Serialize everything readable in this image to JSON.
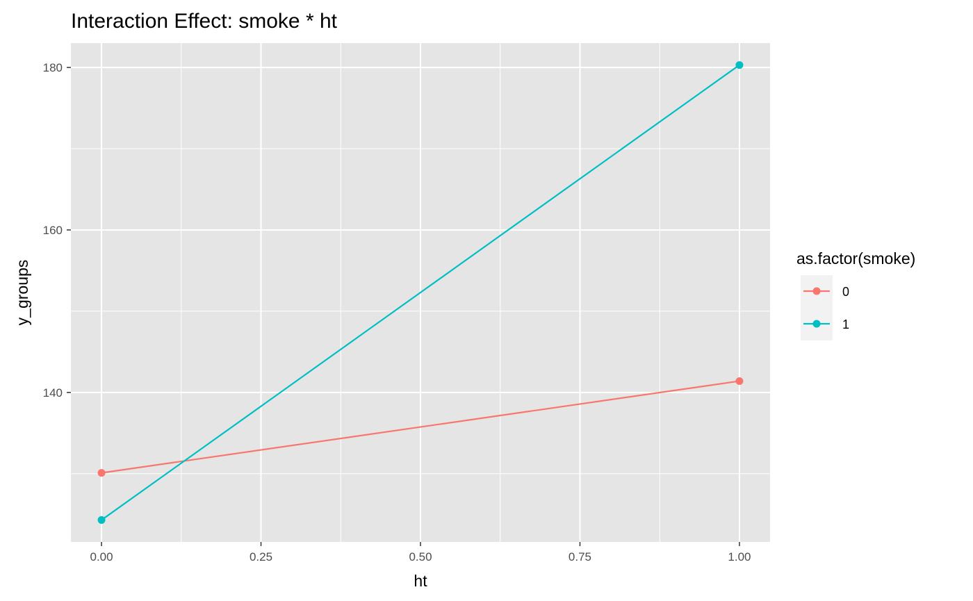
{
  "chart_data": {
    "type": "line",
    "title": "Interaction Effect: smoke * ht",
    "xlabel": "ht",
    "ylabel": "y_groups",
    "xlim": [
      -0.048,
      1.048
    ],
    "ylim": [
      121.6,
      183.0
    ],
    "x_ticks": [
      0.0,
      0.25,
      0.5,
      0.75,
      1.0
    ],
    "x_tick_labels": [
      "0.00",
      "0.25",
      "0.50",
      "0.75",
      "1.00"
    ],
    "y_ticks": [
      140,
      160,
      180
    ],
    "y_tick_labels": [
      "140",
      "160",
      "180"
    ],
    "grid": true,
    "legend": {
      "title": "as.factor(smoke)",
      "position": "right"
    },
    "panel_background": "#e5e5e5",
    "series": [
      {
        "name": "0",
        "color": "#f8766d",
        "x": [
          0,
          1
        ],
        "y": [
          130.1,
          141.4
        ]
      },
      {
        "name": "1",
        "color": "#00bfc4",
        "x": [
          0,
          1
        ],
        "y": [
          124.3,
          180.3
        ]
      }
    ]
  }
}
